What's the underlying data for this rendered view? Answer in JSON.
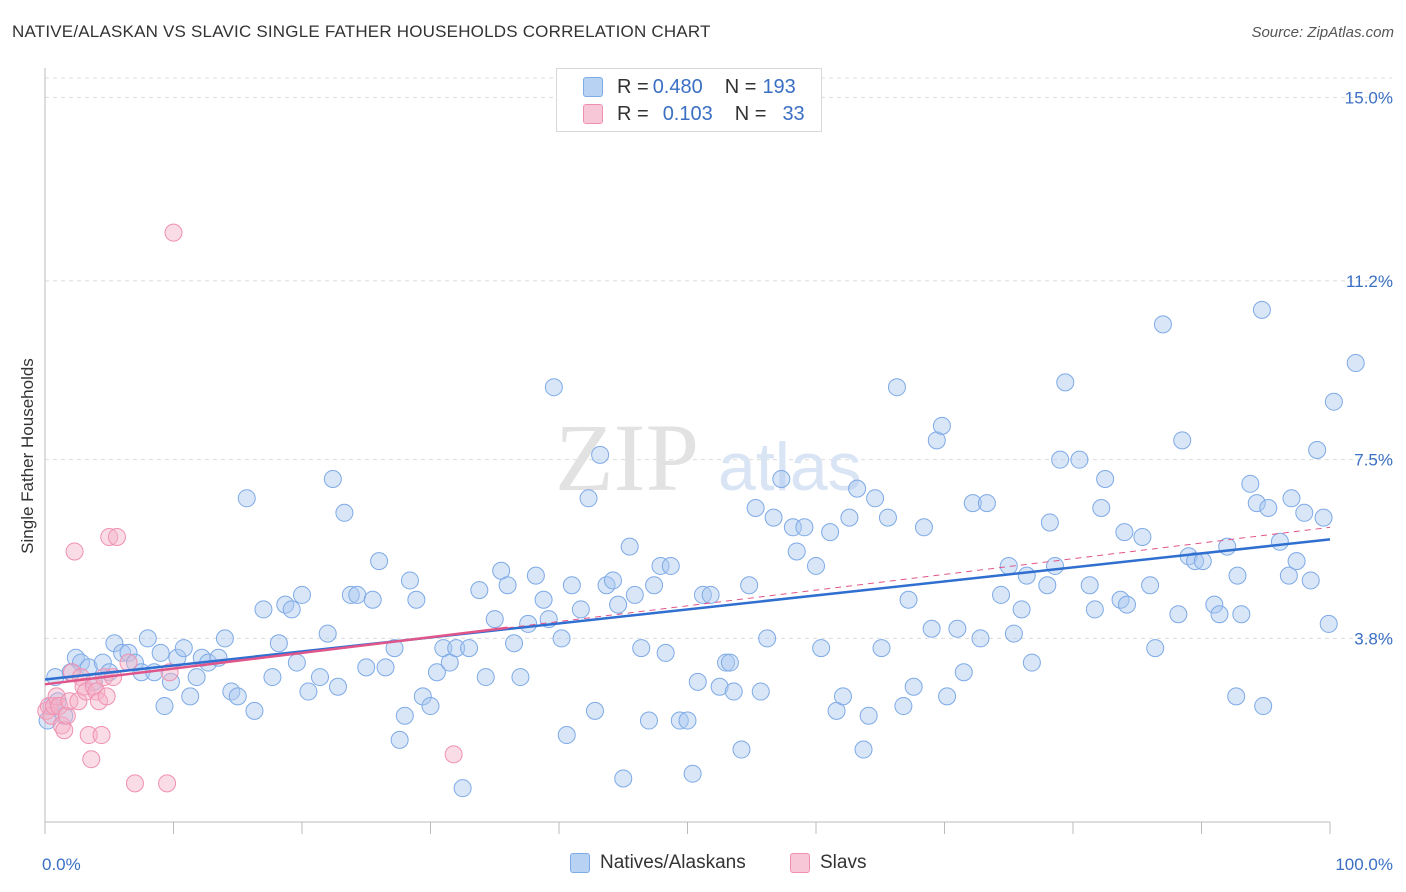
{
  "title": "NATIVE/ALASKAN VS SLAVIC SINGLE FATHER HOUSEHOLDS CORRELATION CHART",
  "source": "Source: ZipAtlas.com",
  "watermark": {
    "zip": "ZIP",
    "atlas": "atlas"
  },
  "legend": {
    "rows": [
      {
        "r_label": "R = ",
        "r_value": "0.480",
        "n_label": "N = ",
        "n_value": "193",
        "color": "#a9c7f0"
      },
      {
        "r_label": "R = ",
        "r_value": "0.103",
        "n_label": "N = ",
        "n_value": "33",
        "color": "#f5b2c8"
      }
    ]
  },
  "bottom_legend": [
    {
      "label": "Natives/Alaskans",
      "color": "#a9c7f0"
    },
    {
      "label": "Slavs",
      "color": "#f5b2c8"
    }
  ],
  "chart_data": {
    "type": "scatter",
    "title": "NATIVE/ALASKAN VS SLAVIC SINGLE FATHER HOUSEHOLDS CORRELATION CHART",
    "xlabel": "",
    "ylabel": "Single Father Households",
    "xlim": [
      0,
      100
    ],
    "ylim": [
      0,
      15.4
    ],
    "x_tick_labels": [
      "0.0%",
      "100.0%"
    ],
    "y_ticks": [
      3.8,
      7.5,
      11.2,
      15.0
    ],
    "y_tick_labels": [
      "3.8%",
      "7.5%",
      "11.2%",
      "15.0%"
    ],
    "grid": true,
    "series": [
      {
        "name": "Natives/Alaskans",
        "color": "#7eaae6",
        "trend": {
          "x": [
            0,
            100
          ],
          "y": [
            2.95,
            5.85
          ],
          "color": "#2f6fd0"
        },
        "points": [
          [
            0.2,
            2.1
          ],
          [
            0.5,
            2.4
          ],
          [
            0.8,
            3.0
          ],
          [
            1,
            2.5
          ],
          [
            1.5,
            2.2
          ],
          [
            2,
            3.1
          ],
          [
            2.4,
            3.4
          ],
          [
            2.8,
            3.3
          ],
          [
            3.4,
            3.2
          ],
          [
            3.8,
            2.9
          ],
          [
            4.5,
            3.3
          ],
          [
            5,
            3.1
          ],
          [
            5.4,
            3.7
          ],
          [
            6,
            3.5
          ],
          [
            6.5,
            3.5
          ],
          [
            7,
            3.3
          ],
          [
            7.5,
            3.1
          ],
          [
            8,
            3.8
          ],
          [
            8.5,
            3.1
          ],
          [
            9,
            3.5
          ],
          [
            9.3,
            2.4
          ],
          [
            9.8,
            2.9
          ],
          [
            10.3,
            3.4
          ],
          [
            10.8,
            3.6
          ],
          [
            11.3,
            2.6
          ],
          [
            11.8,
            3.0
          ],
          [
            12.2,
            3.4
          ],
          [
            12.7,
            3.3
          ],
          [
            13.5,
            3.4
          ],
          [
            14,
            3.8
          ],
          [
            14.5,
            2.7
          ],
          [
            15,
            2.6
          ],
          [
            15.7,
            6.7
          ],
          [
            16.3,
            2.3
          ],
          [
            17,
            4.4
          ],
          [
            17.7,
            3.0
          ],
          [
            18.2,
            3.7
          ],
          [
            18.7,
            4.5
          ],
          [
            19.2,
            4.4
          ],
          [
            19.6,
            3.3
          ],
          [
            20,
            4.7
          ],
          [
            20.5,
            2.7
          ],
          [
            21.4,
            3.0
          ],
          [
            22,
            3.9
          ],
          [
            22.4,
            7.1
          ],
          [
            22.8,
            2.8
          ],
          [
            23.3,
            6.4
          ],
          [
            23.8,
            4.7
          ],
          [
            24.3,
            4.7
          ],
          [
            25,
            3.2
          ],
          [
            25.5,
            4.6
          ],
          [
            26,
            5.4
          ],
          [
            26.5,
            3.2
          ],
          [
            27.2,
            3.6
          ],
          [
            27.6,
            1.7
          ],
          [
            28,
            2.2
          ],
          [
            28.4,
            5.0
          ],
          [
            28.9,
            4.6
          ],
          [
            29.4,
            2.6
          ],
          [
            30,
            2.4
          ],
          [
            30.5,
            3.1
          ],
          [
            31,
            3.6
          ],
          [
            31.5,
            3.3
          ],
          [
            32,
            3.6
          ],
          [
            32.5,
            0.7
          ],
          [
            33,
            3.6
          ],
          [
            33.8,
            4.8
          ],
          [
            34.3,
            3.0
          ],
          [
            35,
            4.2
          ],
          [
            35.5,
            5.2
          ],
          [
            36,
            4.9
          ],
          [
            36.5,
            3.7
          ],
          [
            37,
            3.0
          ],
          [
            37.6,
            4.1
          ],
          [
            38.2,
            5.1
          ],
          [
            38.8,
            4.6
          ],
          [
            39.2,
            4.2
          ],
          [
            39.6,
            9.0
          ],
          [
            40.2,
            3.8
          ],
          [
            40.6,
            1.8
          ],
          [
            41,
            4.9
          ],
          [
            41.7,
            4.4
          ],
          [
            42.3,
            6.7
          ],
          [
            42.8,
            2.3
          ],
          [
            43.2,
            7.6
          ],
          [
            43.7,
            4.9
          ],
          [
            44.2,
            5.0
          ],
          [
            44.6,
            4.5
          ],
          [
            45,
            0.9
          ],
          [
            45.5,
            5.7
          ],
          [
            45.9,
            4.7
          ],
          [
            46.4,
            3.6
          ],
          [
            47,
            2.1
          ],
          [
            47.4,
            4.9
          ],
          [
            47.9,
            5.3
          ],
          [
            48.3,
            3.5
          ],
          [
            48.7,
            5.3
          ],
          [
            49.4,
            2.1
          ],
          [
            50,
            2.1
          ],
          [
            50.4,
            1.0
          ],
          [
            50.8,
            2.9
          ],
          [
            51.2,
            4.7
          ],
          [
            51.8,
            4.7
          ],
          [
            52.5,
            2.8
          ],
          [
            53,
            3.3
          ],
          [
            53.3,
            3.3
          ],
          [
            53.6,
            2.7
          ],
          [
            54.2,
            1.5
          ],
          [
            54.8,
            4.9
          ],
          [
            55.3,
            6.5
          ],
          [
            55.7,
            2.7
          ],
          [
            56.2,
            3.8
          ],
          [
            56.7,
            6.3
          ],
          [
            57.3,
            7.1
          ],
          [
            58.2,
            6.1
          ],
          [
            58.5,
            5.6
          ],
          [
            59.1,
            6.1
          ],
          [
            60,
            5.3
          ],
          [
            60.4,
            3.6
          ],
          [
            61.1,
            6.0
          ],
          [
            61.6,
            2.3
          ],
          [
            62.1,
            2.6
          ],
          [
            62.6,
            6.3
          ],
          [
            63.2,
            6.9
          ],
          [
            63.7,
            1.5
          ],
          [
            64.1,
            2.2
          ],
          [
            64.6,
            6.7
          ],
          [
            65.1,
            3.6
          ],
          [
            65.6,
            6.3
          ],
          [
            66.3,
            9.0
          ],
          [
            66.8,
            2.4
          ],
          [
            67.2,
            4.6
          ],
          [
            67.6,
            2.8
          ],
          [
            68.4,
            6.1
          ],
          [
            69,
            4.0
          ],
          [
            69.4,
            7.9
          ],
          [
            69.8,
            8.2
          ],
          [
            70.2,
            2.6
          ],
          [
            71,
            4.0
          ],
          [
            71.5,
            3.1
          ],
          [
            72.2,
            6.6
          ],
          [
            72.8,
            3.8
          ],
          [
            73.3,
            6.6
          ],
          [
            74.4,
            4.7
          ],
          [
            75,
            5.3
          ],
          [
            75.4,
            3.9
          ],
          [
            76,
            4.4
          ],
          [
            76.4,
            5.1
          ],
          [
            76.8,
            3.3
          ],
          [
            78,
            4.9
          ],
          [
            78.2,
            6.2
          ],
          [
            78.6,
            5.3
          ],
          [
            79,
            7.5
          ],
          [
            79.4,
            9.1
          ],
          [
            80.5,
            7.5
          ],
          [
            81.3,
            4.9
          ],
          [
            81.7,
            4.4
          ],
          [
            82.5,
            7.1
          ],
          [
            82.2,
            6.5
          ],
          [
            83.7,
            4.6
          ],
          [
            84,
            6.0
          ],
          [
            84.2,
            4.5
          ],
          [
            85.4,
            5.9
          ],
          [
            86,
            4.9
          ],
          [
            86.4,
            3.6
          ],
          [
            87,
            10.3
          ],
          [
            88.2,
            4.3
          ],
          [
            88.5,
            7.9
          ],
          [
            89,
            5.5
          ],
          [
            89.5,
            5.4
          ],
          [
            90.1,
            5.4
          ],
          [
            91,
            4.5
          ],
          [
            91.4,
            4.3
          ],
          [
            92,
            5.7
          ],
          [
            92.7,
            2.6
          ],
          [
            93.1,
            4.3
          ],
          [
            93.8,
            7.0
          ],
          [
            94.3,
            6.6
          ],
          [
            94.8,
            2.4
          ],
          [
            95.2,
            6.5
          ],
          [
            96.1,
            5.8
          ],
          [
            96.8,
            5.1
          ],
          [
            97,
            6.7
          ],
          [
            97.4,
            5.4
          ],
          [
            98,
            6.4
          ],
          [
            98.5,
            5.0
          ],
          [
            99,
            7.7
          ],
          [
            99.5,
            6.3
          ],
          [
            99.9,
            4.1
          ],
          [
            100.3,
            8.7
          ],
          [
            102,
            9.5
          ],
          [
            94.7,
            10.6
          ],
          [
            92.8,
            5.1
          ]
        ]
      },
      {
        "name": "Slavs",
        "color": "#f090b0",
        "trend": {
          "x": [
            0,
            100
          ],
          "y": [
            2.85,
            6.1
          ],
          "color": "#e0558a"
        },
        "points": [
          [
            0.1,
            2.3
          ],
          [
            0.3,
            2.4
          ],
          [
            0.5,
            2.2
          ],
          [
            0.7,
            2.4
          ],
          [
            0.9,
            2.6
          ],
          [
            1.1,
            2.4
          ],
          [
            1.3,
            2.0
          ],
          [
            1.5,
            1.9
          ],
          [
            1.7,
            2.2
          ],
          [
            1.9,
            2.5
          ],
          [
            2.1,
            3.1
          ],
          [
            2.3,
            5.6
          ],
          [
            2.6,
            2.5
          ],
          [
            2.8,
            3.0
          ],
          [
            3.0,
            2.8
          ],
          [
            3.2,
            2.7
          ],
          [
            3.4,
            1.8
          ],
          [
            3.6,
            1.3
          ],
          [
            3.8,
            2.8
          ],
          [
            4.0,
            2.7
          ],
          [
            4.2,
            2.5
          ],
          [
            4.4,
            1.8
          ],
          [
            4.6,
            3.0
          ],
          [
            4.8,
            2.6
          ],
          [
            5.0,
            5.9
          ],
          [
            5.3,
            3.0
          ],
          [
            5.6,
            5.9
          ],
          [
            6.5,
            3.3
          ],
          [
            7.0,
            0.8
          ],
          [
            9.5,
            0.8
          ],
          [
            9.7,
            3.1
          ],
          [
            10.0,
            12.2
          ],
          [
            31.8,
            1.4
          ]
        ]
      }
    ]
  }
}
